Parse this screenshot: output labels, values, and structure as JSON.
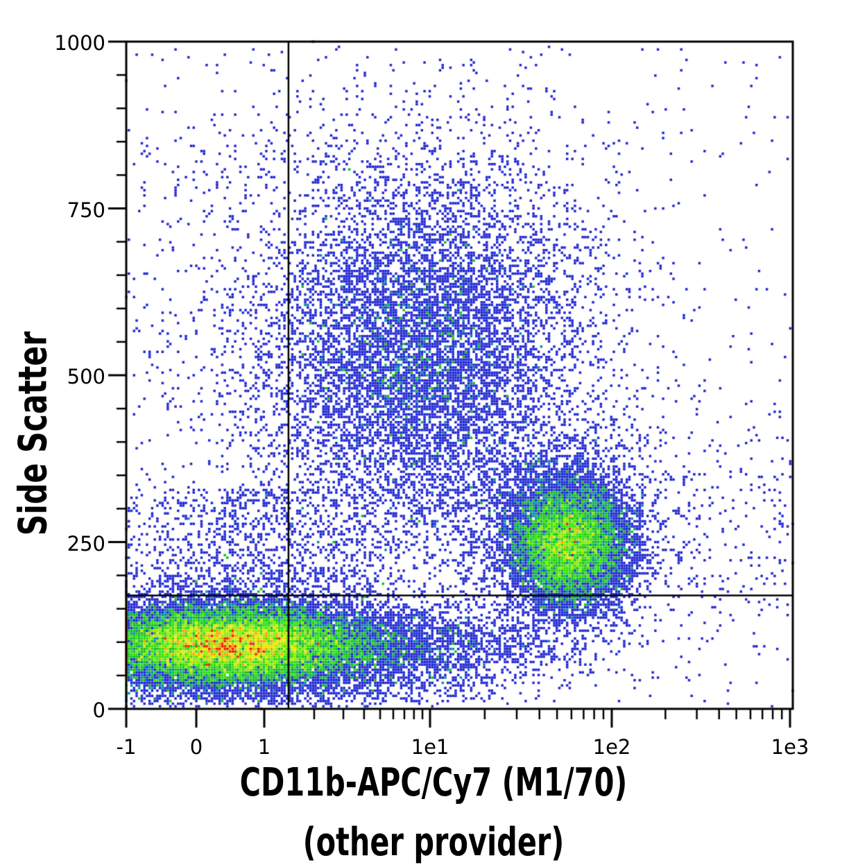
{
  "figure": {
    "ylabel": "Side Scatter",
    "xlabel_line1": "CD11b-APC/Cy7 (M1/70)",
    "xlabel_line2": "(other provider)"
  },
  "chart_data": {
    "type": "scatter",
    "subtype": "flow_cytometry_pseudocolor_density_dot_plot",
    "title": "",
    "x_axis": {
      "label": "CD11b-APC/Cy7 (M1/70) (other provider)",
      "scale": "biexponential",
      "range": [
        -1,
        1000
      ],
      "major_ticks": [
        {
          "value": -1,
          "label": "-1"
        },
        {
          "value": 0,
          "label": "0"
        },
        {
          "value": 1,
          "label": "1"
        },
        {
          "value": 10,
          "label": "1e1"
        },
        {
          "value": 100,
          "label": "1e2"
        },
        {
          "value": 1000,
          "label": "1e3"
        }
      ],
      "minor_tick_values": [
        2,
        3,
        4,
        5,
        6,
        7,
        8,
        9,
        20,
        30,
        40,
        50,
        60,
        70,
        80,
        90,
        200,
        300,
        400,
        500,
        600,
        700,
        800,
        900
      ]
    },
    "y_axis": {
      "label": "Side Scatter",
      "scale": "linear",
      "range": [
        0,
        1000
      ],
      "major_ticks": [
        {
          "value": 0,
          "label": "0"
        },
        {
          "value": 250,
          "label": "250"
        },
        {
          "value": 500,
          "label": "500"
        },
        {
          "value": 750,
          "label": "750"
        },
        {
          "value": 1000,
          "label": "1000"
        }
      ],
      "minor_tick_step": 50
    },
    "quadrant_gate": {
      "x_value": 1.4,
      "y_value": 170
    },
    "grid": "off",
    "legend": "none",
    "axis_color": "#000000",
    "background_color": "#ffffff",
    "density_colormap": [
      {
        "max_count": 3,
        "color": "#2128d2"
      },
      {
        "max_count": 5,
        "color": "#0c8ca0"
      },
      {
        "max_count": 8,
        "color": "#16be22"
      },
      {
        "max_count": 12,
        "color": "#2ee00e"
      },
      {
        "max_count": 16,
        "color": "#96e800"
      },
      {
        "max_count": 20,
        "color": "#e8e600"
      },
      {
        "max_count": 23,
        "color": "#ff9e00"
      },
      {
        "max_count": 999999,
        "color": "#f01e00"
      }
    ],
    "populations": [
      {
        "name": "cd11b_negative_main_low_ssc",
        "count": 24000,
        "x_scale_mean": 0.152,
        "x_scale_sd": 0.105,
        "x_pile_left": true,
        "ssc_mean": 96,
        "ssc_sd": 30
      },
      {
        "name": "cd11b_negative_fringe",
        "count": 2600,
        "x_scale_mean": 0.18,
        "x_scale_sd": 0.13,
        "ssc_mean": 100,
        "ssc_sd": 46
      },
      {
        "name": "cd11b_dim_tail_low_ssc",
        "count": 2600,
        "x_scale_mean": 0.4,
        "x_scale_sd": 0.13,
        "ssc_mean": 93,
        "ssc_sd": 28
      },
      {
        "name": "cd11b_positive_cluster",
        "count": 11000,
        "x_scale_mean": 0.664,
        "x_scale_sd": 0.045,
        "ssc_mean": 247,
        "ssc_sd": 48
      },
      {
        "name": "cd11b_positive_cluster_top",
        "count": 1500,
        "x_scale_mean": 0.645,
        "x_scale_sd": 0.075,
        "ssc_mean": 295,
        "ssc_sd": 65
      },
      {
        "name": "high_ssc_cloud",
        "count": 8000,
        "x_scale_mean": 0.44,
        "x_scale_sd": 0.11,
        "ssc_mean": 530,
        "ssc_sd": 130
      },
      {
        "name": "high_ssc_halo",
        "count": 2500,
        "x_scale_mean": 0.45,
        "x_scale_sd": 0.17,
        "ssc_mean": 560,
        "ssc_sd": 200
      },
      {
        "name": "mid_left_band",
        "count": 1100,
        "x_scale_mean": 0.2,
        "x_scale_sd": 0.13,
        "ssc_dist": "uniform",
        "ssc_min": 170,
        "ssc_max": 330
      },
      {
        "name": "background_scatter",
        "count": 650,
        "x_dist": "uniform",
        "x_min": 0,
        "x_max": 1,
        "ssc_dist": "uniform",
        "ssc_min": 5,
        "ssc_max": 995
      },
      {
        "name": "right_sparse",
        "count": 350,
        "x_dist": "uniform",
        "x_min": 0.66,
        "x_max": 1.0,
        "ssc_mean": 255,
        "ssc_sd": 95
      },
      {
        "name": "bottom_sparse",
        "count": 450,
        "x_dist": "uniform",
        "x_min": 0.02,
        "x_max": 0.55,
        "ssc_dist": "uniform",
        "ssc_min": 8,
        "ssc_max": 50
      },
      {
        "name": "left_sparse",
        "count": 250,
        "x_dist": "uniform",
        "x_min": 0,
        "x_max": 0.24,
        "ssc_dist": "uniform",
        "ssc_min": 180,
        "ssc_max": 900
      }
    ]
  }
}
